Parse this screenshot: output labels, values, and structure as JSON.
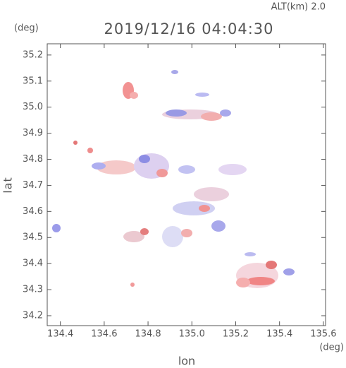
{
  "chart_data": {
    "type": "radar-map",
    "title": "2019/12/16 04:04:30",
    "subtitle": "ALT(km) 2.0",
    "x_label": "lon",
    "y_label": "lat",
    "x_unit": "(deg)",
    "y_unit": "(deg)",
    "xlim": [
      134.34,
      135.61
    ],
    "ylim": [
      34.162,
      35.243
    ],
    "xticks": [
      134.4,
      134.6,
      134.8,
      {
        "value": 135,
        "label": "135.0"
      },
      135.2,
      135.4,
      135.6
    ],
    "yticks": [
      34.2,
      34.3,
      34.4,
      34.5,
      34.6,
      34.7,
      34.8,
      34.9,
      {
        "value": 35,
        "label": "35.0"
      },
      35.1,
      35.2
    ]
  }
}
